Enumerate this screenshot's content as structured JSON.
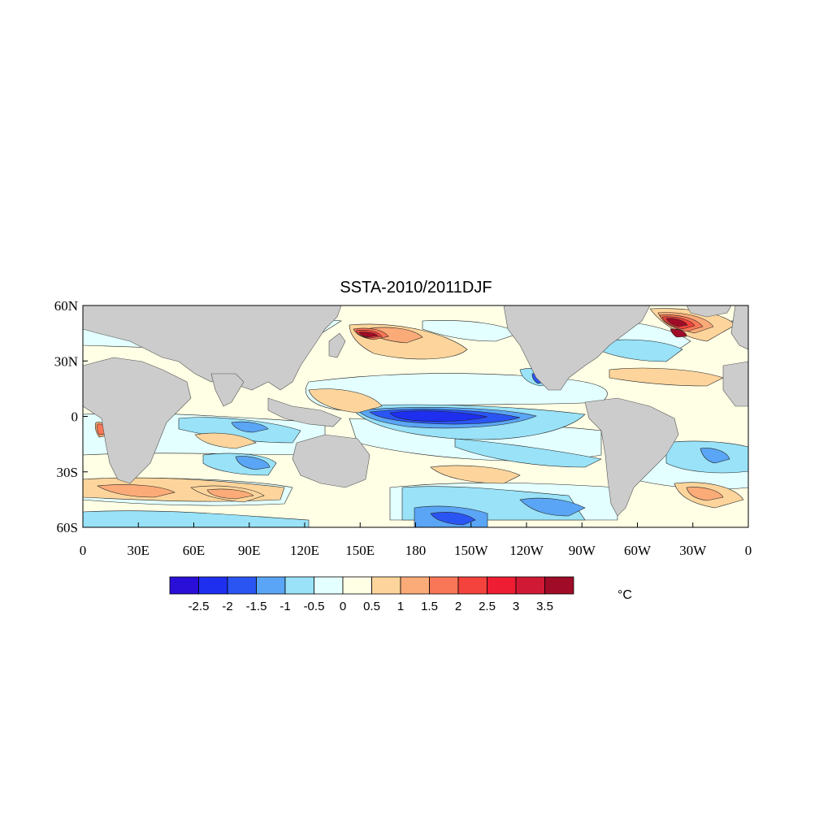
{
  "map": {
    "title": "SSTA-2010/2011DJF",
    "lat_ticks": [
      "60N",
      "30N",
      "0",
      "30S",
      "60S"
    ],
    "lon_ticks": [
      "0",
      "30E",
      "60E",
      "90E",
      "120E",
      "150E",
      "180",
      "150W",
      "120W",
      "90W",
      "60W",
      "30W",
      "0"
    ],
    "land_color": "#cccccc",
    "background_color": "#ffffe6"
  },
  "colorbar": {
    "unit": "°C",
    "labels": [
      "-2.5",
      "-2",
      "-1.5",
      "-1",
      "-0.5",
      "0",
      "0.5",
      "1",
      "1.5",
      "2",
      "2.5",
      "3",
      "3.5"
    ],
    "colors": [
      "#2a0fd8",
      "#1e2ff0",
      "#2b55f3",
      "#5aa5f5",
      "#99e2f8",
      "#e3ffff",
      "#ffffe6",
      "#fdd59c",
      "#fbab78",
      "#f97756",
      "#f4433c",
      "#ee1d33",
      "#d01a35",
      "#a00c27"
    ]
  }
}
